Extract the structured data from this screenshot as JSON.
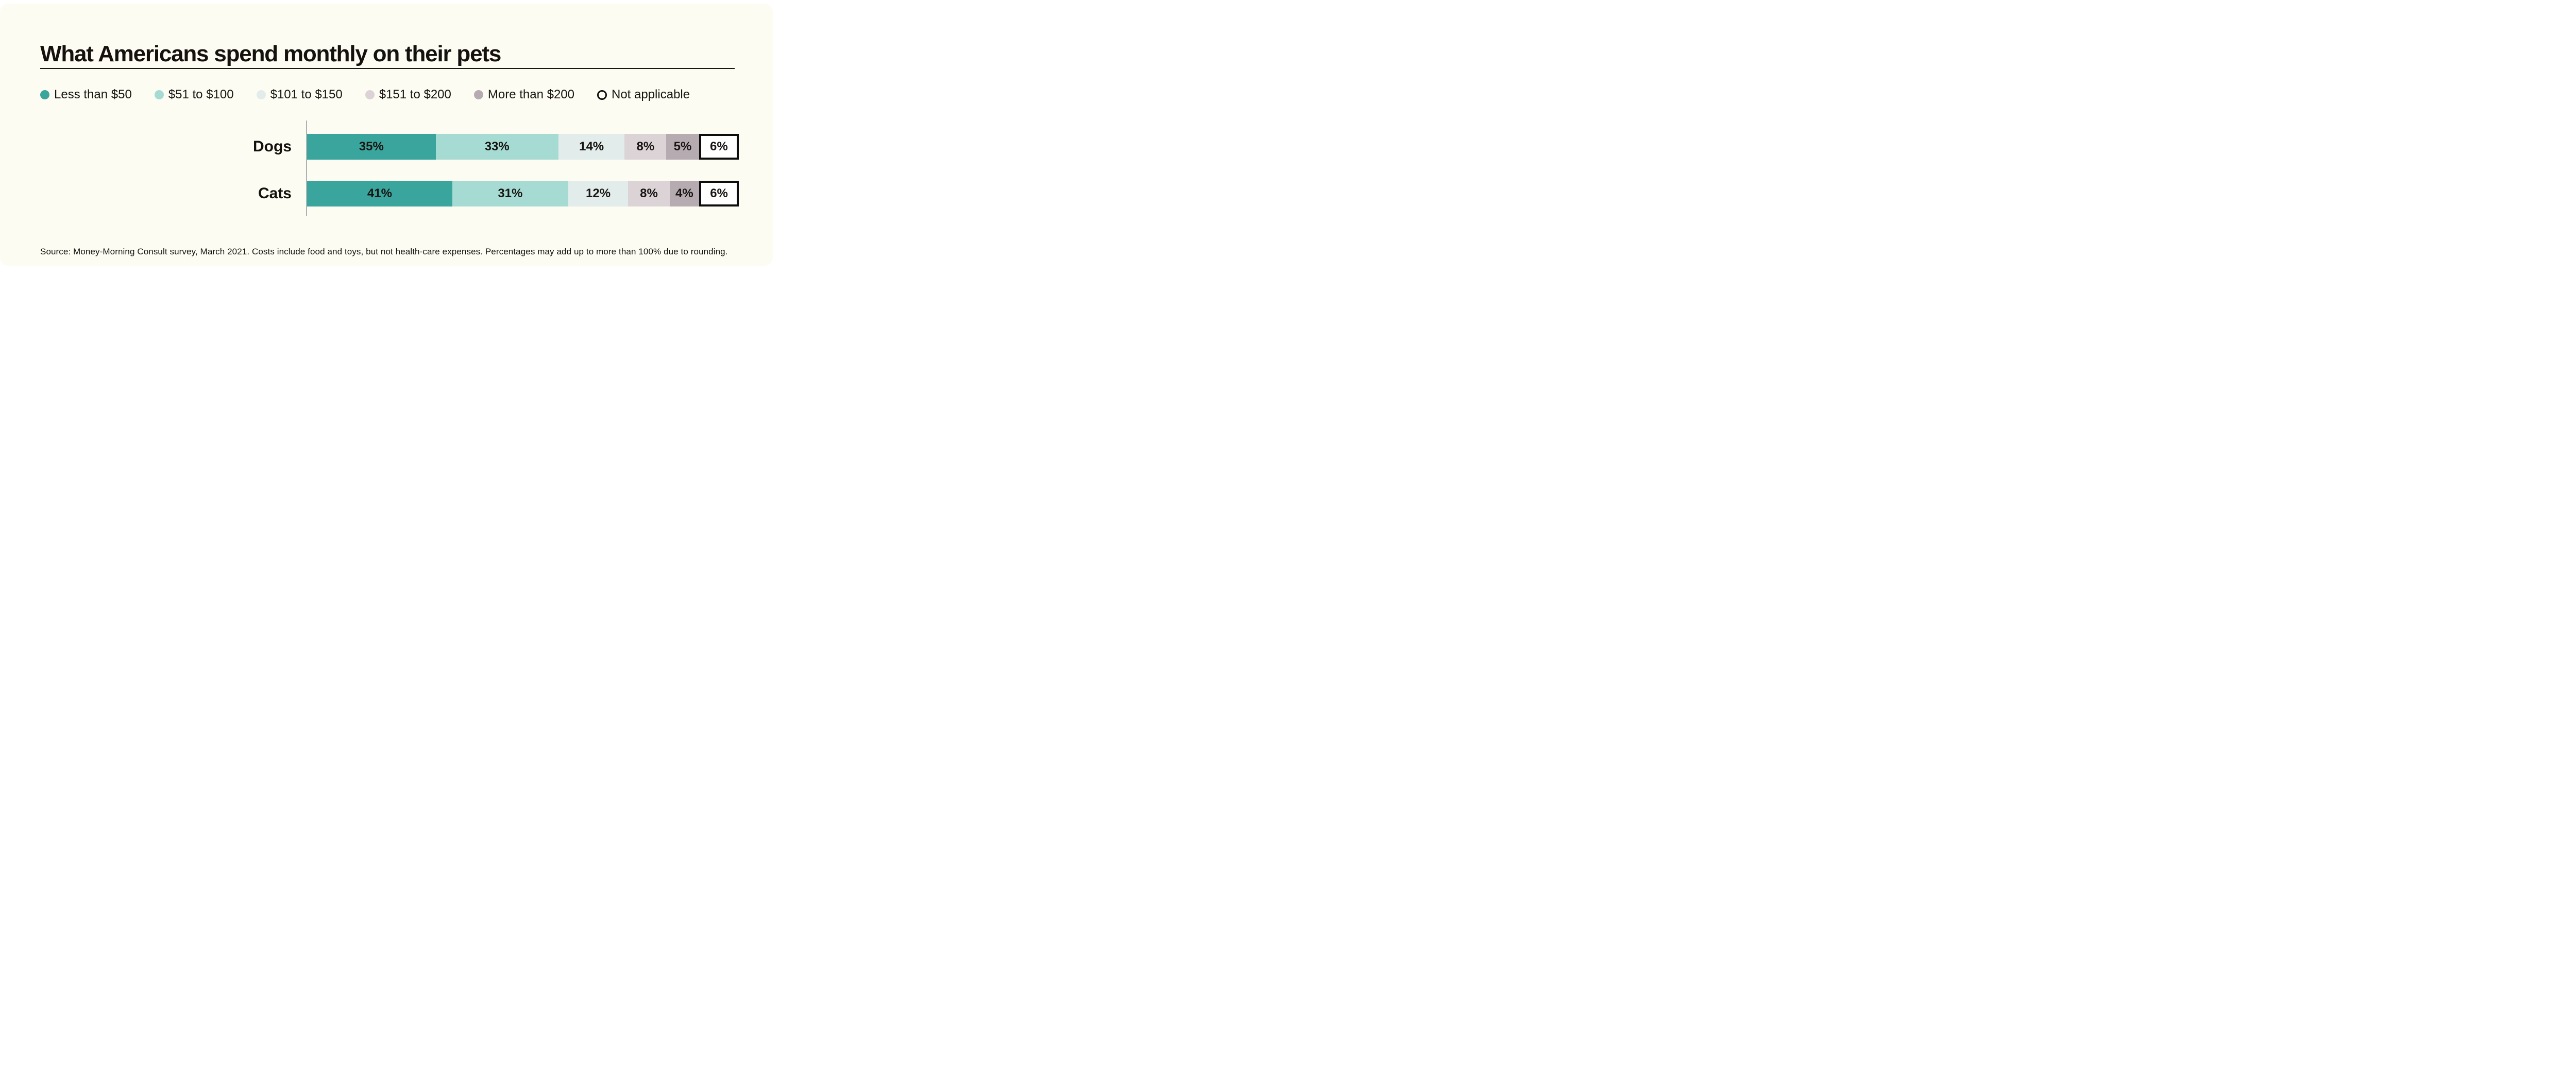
{
  "title": "What Americans spend monthly on their pets",
  "source": "Source: Money-Morning Consult survey, March 2021. Costs include food and toys, but not health-care expenses. Percentages may add up to more than 100% due to rounding.",
  "colors": {
    "background_card": "#FDFCF2",
    "text": "#14110F",
    "axis_line": "#ADB3B2",
    "outline_black": "#0D0D0D",
    "not_applicable_fill": "#FFFFFF"
  },
  "chart_data": {
    "type": "bar",
    "orientation": "horizontal",
    "stacked": true,
    "equal_length_rows": true,
    "title": "What Americans spend monthly on their pets",
    "categories": [
      "Dogs",
      "Cats"
    ],
    "series": [
      {
        "name": "Less than $50",
        "color": "#39A59D",
        "outlined": false,
        "values": [
          35,
          41
        ]
      },
      {
        "name": "$51 to $100",
        "color": "#A6DBD3",
        "outlined": false,
        "values": [
          33,
          31
        ]
      },
      {
        "name": "$101 to $150",
        "color": "#E2ECEA",
        "outlined": false,
        "values": [
          14,
          12
        ]
      },
      {
        "name": "$151 to $200",
        "color": "#DCD3D7",
        "outlined": false,
        "values": [
          8,
          8
        ]
      },
      {
        "name": "More than $200",
        "color": "#B6ABB1",
        "outlined": false,
        "values": [
          5,
          4
        ]
      },
      {
        "name": "Not applicable",
        "color": "#FFFFFF",
        "outlined": true,
        "values": [
          6,
          6
        ]
      }
    ],
    "value_suffix": "%",
    "legend_position": "top",
    "grid": false,
    "source": "Source: Money-Morning Consult survey, March 2021. Costs include food and toys, but not health-care expenses. Percentages may add up to more than 100% due to rounding."
  }
}
